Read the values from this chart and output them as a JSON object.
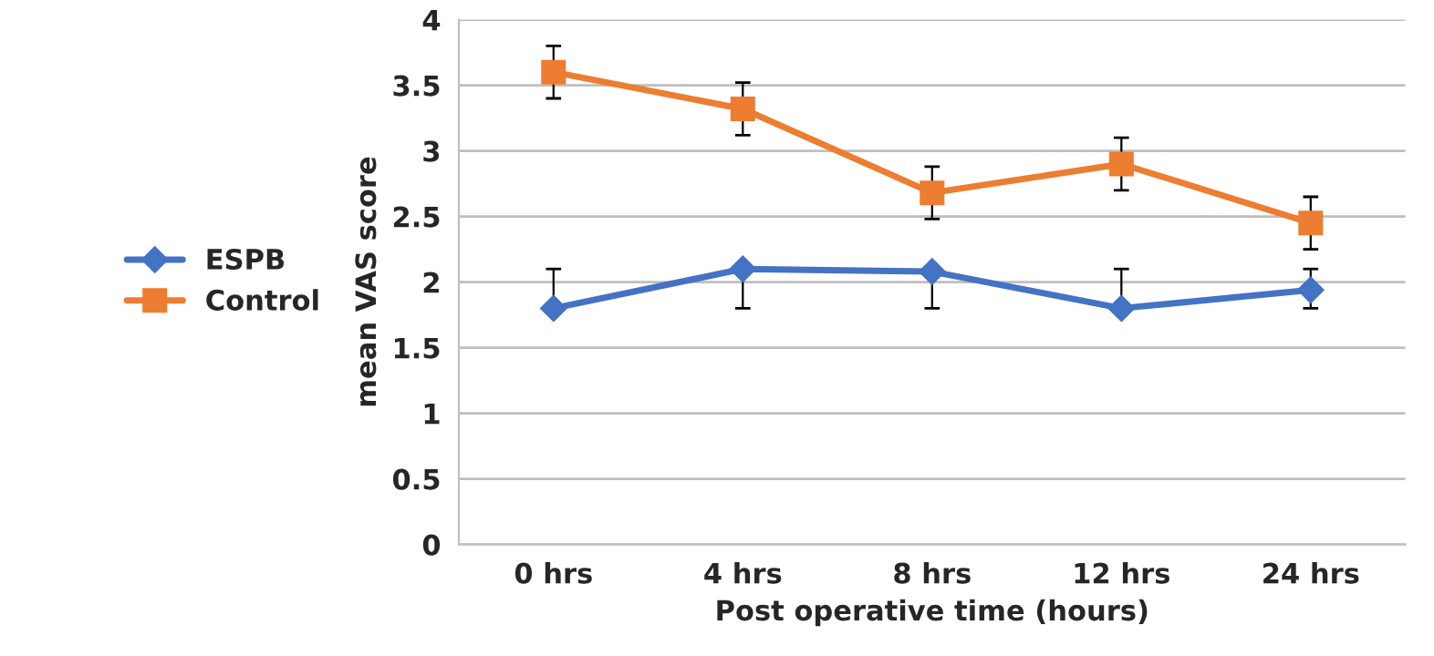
{
  "chart_data": {
    "type": "line",
    "xlabel": "Post operative time (hours)",
    "ylabel": "mean VAS score",
    "categories": [
      "0 hrs",
      "4 hrs",
      "8 hrs",
      "12 hrs",
      "24 hrs"
    ],
    "series": [
      {
        "name": "ESPB",
        "color": "#4472c4",
        "marker": "diamond",
        "values": [
          1.8,
          2.1,
          2.08,
          1.8,
          1.94
        ],
        "errors": [
          [
            1.8,
            2.1
          ],
          [
            1.8,
            2.1
          ],
          [
            1.8,
            2.08
          ],
          [
            1.8,
            2.1
          ],
          [
            1.8,
            2.1
          ]
        ]
      },
      {
        "name": "Control",
        "color": "#ed7d31",
        "marker": "square",
        "values": [
          3.6,
          3.32,
          2.68,
          2.9,
          2.45
        ],
        "errors": [
          0.2,
          0.2,
          0.2,
          0.2,
          0.2
        ]
      }
    ],
    "ylim": [
      0,
      4
    ],
    "yticks": [
      0,
      0.5,
      1,
      1.5,
      2,
      2.5,
      3,
      3.5,
      4
    ],
    "grid": "y",
    "legend": "left"
  }
}
